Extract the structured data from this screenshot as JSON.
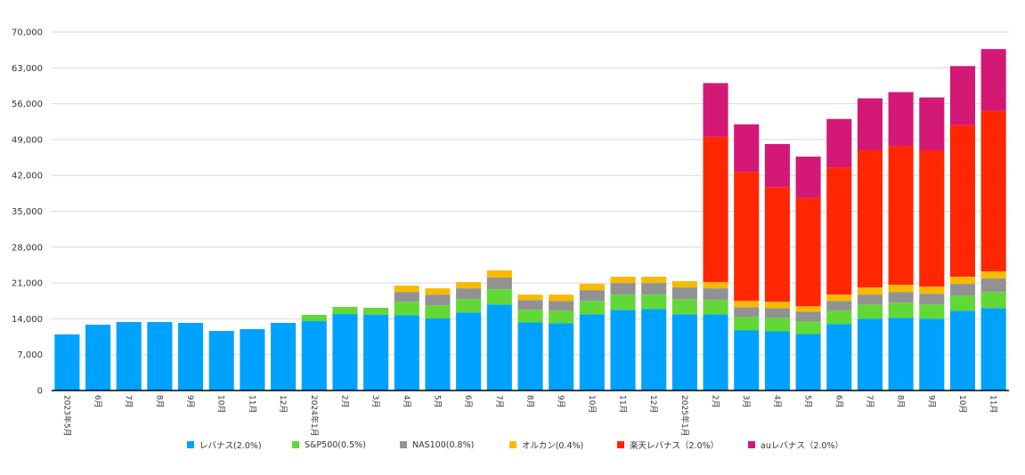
{
  "chart_data": {
    "type": "bar",
    "stacked": true,
    "title": "",
    "xlabel": "",
    "ylabel": "",
    "ylim": [
      0,
      70000
    ],
    "yticks": [
      "0",
      "7,000",
      "14,000",
      "21,000",
      "28,000",
      "35,000",
      "42,000",
      "49,000",
      "56,000",
      "63,000",
      "70,000"
    ],
    "ytick_values": [
      0,
      7000,
      14000,
      21000,
      28000,
      35000,
      42000,
      49000,
      56000,
      63000,
      70000
    ],
    "grid": true,
    "legend_position": "bottom",
    "categories": [
      "2023年5月",
      "6月",
      "7月",
      "8月",
      "9月",
      "10月",
      "11月",
      "12月",
      "2024年1月",
      "2月",
      "3月",
      "4月",
      "5月",
      "6月",
      "7月",
      "8月",
      "9月",
      "10月",
      "11月",
      "12月",
      "2025年1月",
      "2月",
      "3月",
      "4月",
      "5月",
      "6月",
      "7月",
      "8月",
      "9月",
      "10月",
      "11月"
    ],
    "series": [
      {
        "name": "レバナス(2.0%)",
        "color": "#00a2ff",
        "values": [
          10950,
          12850,
          13370,
          13370,
          13200,
          11630,
          11980,
          13200,
          13540,
          14930,
          14760,
          14700,
          14060,
          15225,
          16800,
          13300,
          13125,
          14875,
          15750,
          15925,
          14875,
          14875,
          11725,
          11550,
          11025,
          12950,
          14000,
          14175,
          14000,
          15575,
          16100
        ]
      },
      {
        "name": "S&P500(0.5%)",
        "color": "#61d836",
        "values": [
          0,
          0,
          0,
          0,
          0,
          0,
          0,
          0,
          1220,
          1390,
          1390,
          2625,
          2565,
          2625,
          2975,
          2450,
          2450,
          2625,
          2975,
          2800,
          2975,
          2800,
          2625,
          2625,
          2450,
          2625,
          2800,
          2975,
          2800,
          2975,
          3150
        ]
      },
      {
        "name": "NAS100(0.8%)",
        "color": "#929292",
        "values": [
          0,
          0,
          0,
          0,
          0,
          0,
          0,
          0,
          0,
          0,
          0,
          1925,
          2100,
          2100,
          2275,
          1925,
          1925,
          2100,
          2275,
          2275,
          2275,
          2275,
          1925,
          1925,
          1925,
          1925,
          1925,
          2100,
          2100,
          2275,
          2625
        ]
      },
      {
        "name": "オルカン(0.4%)",
        "color": "#f8ba00",
        "values": [
          0,
          0,
          0,
          0,
          0,
          0,
          0,
          0,
          0,
          0,
          0,
          1225,
          1225,
          1225,
          1400,
          1050,
          1225,
          1225,
          1225,
          1225,
          1225,
          1225,
          1225,
          1225,
          1050,
          1225,
          1400,
          1400,
          1400,
          1400,
          1400
        ]
      },
      {
        "name": "楽天レバナス（2.0%）",
        "color": "#ff2600",
        "values": [
          0,
          0,
          0,
          0,
          0,
          0,
          0,
          0,
          0,
          0,
          0,
          0,
          0,
          0,
          0,
          0,
          0,
          0,
          0,
          0,
          0,
          28350,
          25200,
          22400,
          21175,
          24850,
          26775,
          27125,
          26600,
          29575,
          31325
        ]
      },
      {
        "name": "auレバナス（2.0%）",
        "color": "#d41876",
        "values": [
          0,
          0,
          0,
          0,
          0,
          0,
          0,
          0,
          0,
          0,
          0,
          0,
          0,
          0,
          0,
          0,
          0,
          0,
          0,
          0,
          0,
          10500,
          9275,
          8400,
          8050,
          9450,
          10150,
          10500,
          10325,
          11550,
          12075
        ]
      }
    ]
  }
}
